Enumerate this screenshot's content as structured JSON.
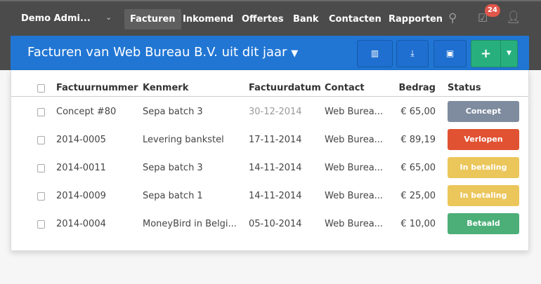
{
  "nav": {
    "brand": "Demo Admi...",
    "items": [
      "Facturen",
      "Inkomend",
      "Offertes",
      "Bank",
      "Contacten",
      "Rapporten"
    ],
    "active": "Facturen",
    "badge": "24"
  },
  "header": {
    "title": "Facturen van Web Bureau B.V. uit dit jaar",
    "add": "+"
  },
  "table": {
    "columns": [
      "Factuurnummer",
      "Kenmerk",
      "Factuurdatum",
      "Contact",
      "Bedrag",
      "Status"
    ],
    "rows": [
      {
        "nummer": "Concept #80",
        "kenmerk": "Sepa batch 3",
        "datum": "30-12-2014",
        "contact": "Web Burea...",
        "bedrag": "€ 65,00",
        "status": "Concept",
        "color": "#7f8c9f"
      },
      {
        "nummer": "2014-0005",
        "kenmerk": "Levering bankstel",
        "datum": "17-11-2014",
        "contact": "Web Burea...",
        "bedrag": "€ 89,19",
        "status": "Verlopen",
        "color": "#e05232"
      },
      {
        "nummer": "2014-0011",
        "kenmerk": "Sepa batch 3",
        "datum": "14-11-2014",
        "contact": "Web Burea...",
        "bedrag": "€ 65,00",
        "status": "In betaling",
        "color": "#ebc65b"
      },
      {
        "nummer": "2014-0009",
        "kenmerk": "Sepa batch 1",
        "datum": "14-11-2014",
        "contact": "Web Burea...",
        "bedrag": "€ 25,00",
        "status": "In betaling",
        "color": "#ebc65b"
      },
      {
        "nummer": "2014-0004",
        "kenmerk": "MoneyBird in Belgi...",
        "datum": "05-10-2014",
        "contact": "Web Burea...",
        "bedrag": "€ 10,00",
        "status": "Betaald",
        "color": "#4caf78"
      }
    ]
  }
}
